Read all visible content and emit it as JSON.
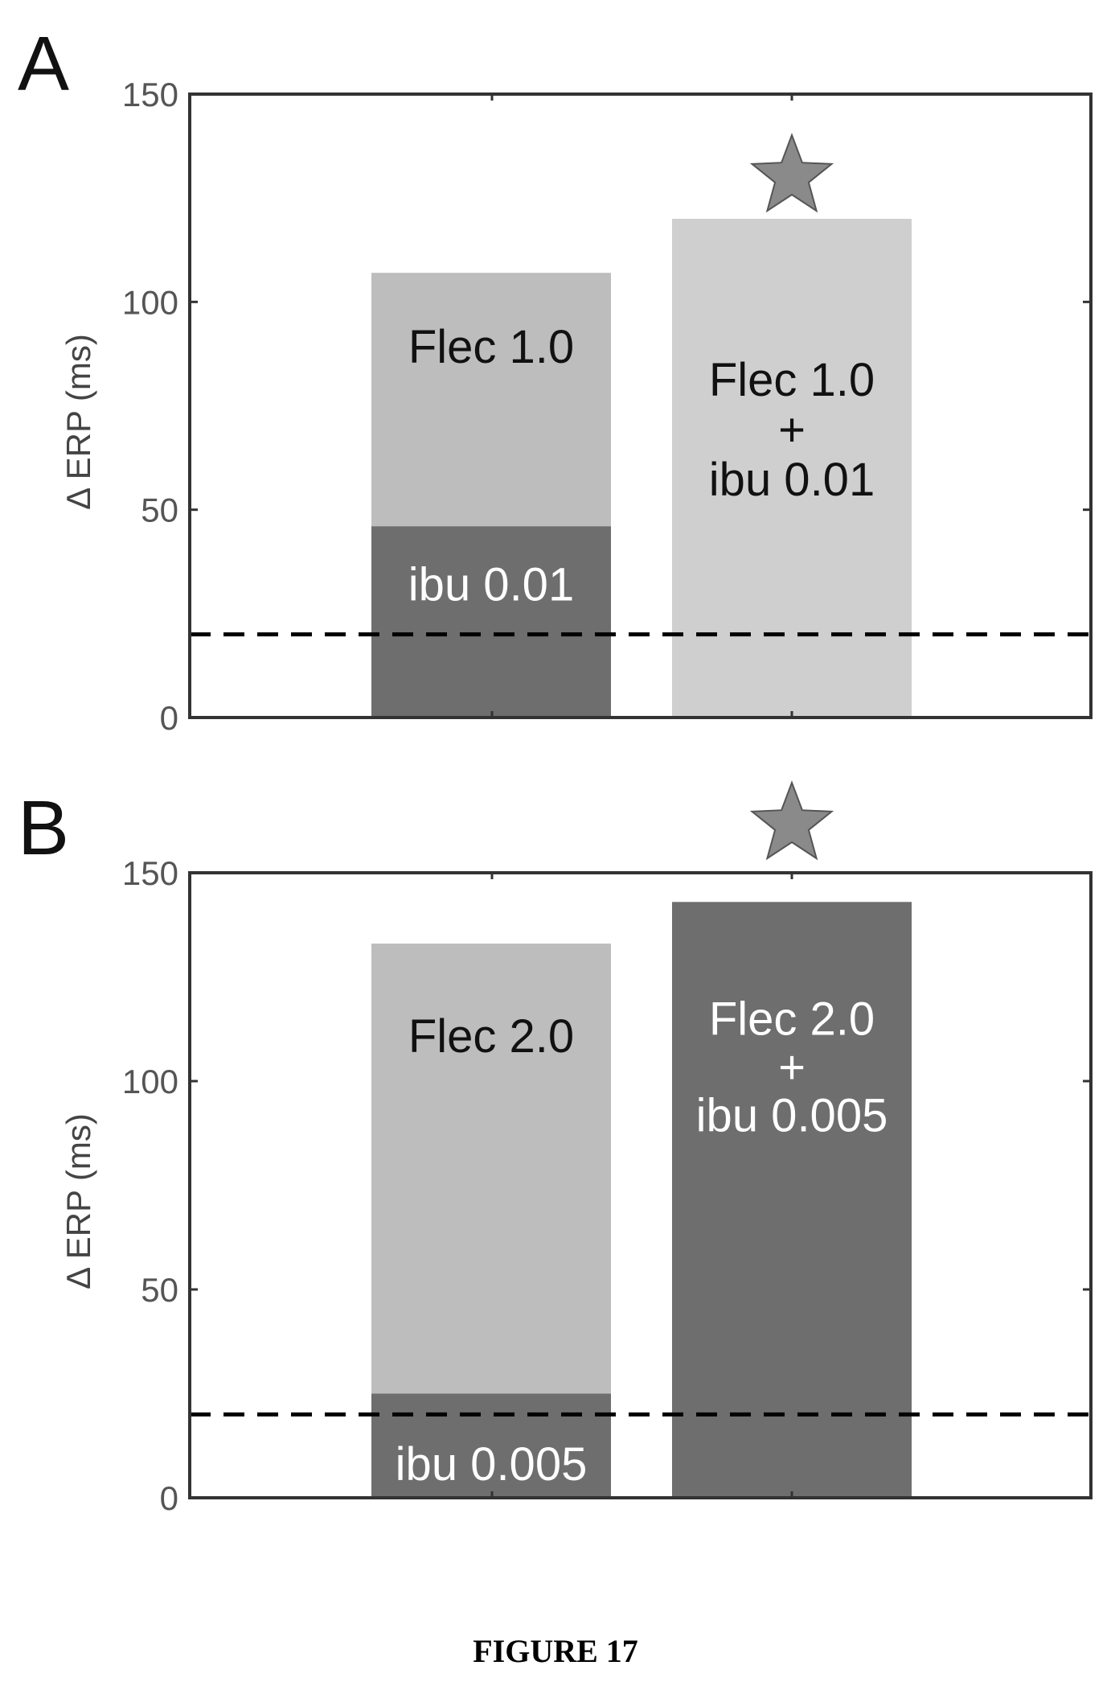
{
  "caption": "FIGURE 17",
  "colors": {
    "light_gray": "#bdbdbd",
    "lighter_gray": "#cfcfcf",
    "dark_gray": "#6e6e6e",
    "star": "#8a8a8a",
    "dashed_line": "#000000"
  },
  "chart_data": [
    {
      "panel": "A",
      "type": "bar",
      "ylabel": "Δ ERP (ms)",
      "ylim": [
        0,
        150
      ],
      "yticks": [
        0,
        50,
        100,
        150
      ],
      "threshold": 20,
      "threshold_style": "dashed",
      "bars": [
        {
          "stack": [
            {
              "label": "ibu 0.01",
              "value": 46,
              "shade": "dark",
              "text_color": "#ffffff"
            },
            {
              "label": "Flec 1.0",
              "value": 107,
              "shade": "light",
              "text_color": "#111111"
            }
          ]
        },
        {
          "stack": [
            {
              "label_lines": [
                "Flec 1.0",
                "+",
                "ibu 0.01"
              ],
              "value": 120,
              "shade": "lighter",
              "text_color": "#111111"
            }
          ],
          "star": true
        }
      ]
    },
    {
      "panel": "B",
      "type": "bar",
      "ylabel": "Δ ERP (ms)",
      "ylim": [
        0,
        150
      ],
      "yticks": [
        0,
        50,
        100,
        150
      ],
      "threshold": 20,
      "threshold_style": "dashed",
      "bars": [
        {
          "stack": [
            {
              "label": "ibu 0.005",
              "value": 25,
              "shade": "dark",
              "text_color": "#ffffff"
            },
            {
              "label": "Flec 2.0",
              "value": 133,
              "shade": "light",
              "text_color": "#111111"
            }
          ]
        },
        {
          "stack": [
            {
              "label_lines": [
                "Flec 2.0",
                "+",
                "ibu 0.005"
              ],
              "value": 143,
              "shade": "dark",
              "text_color": "#ffffff"
            }
          ],
          "star": true
        }
      ]
    }
  ]
}
